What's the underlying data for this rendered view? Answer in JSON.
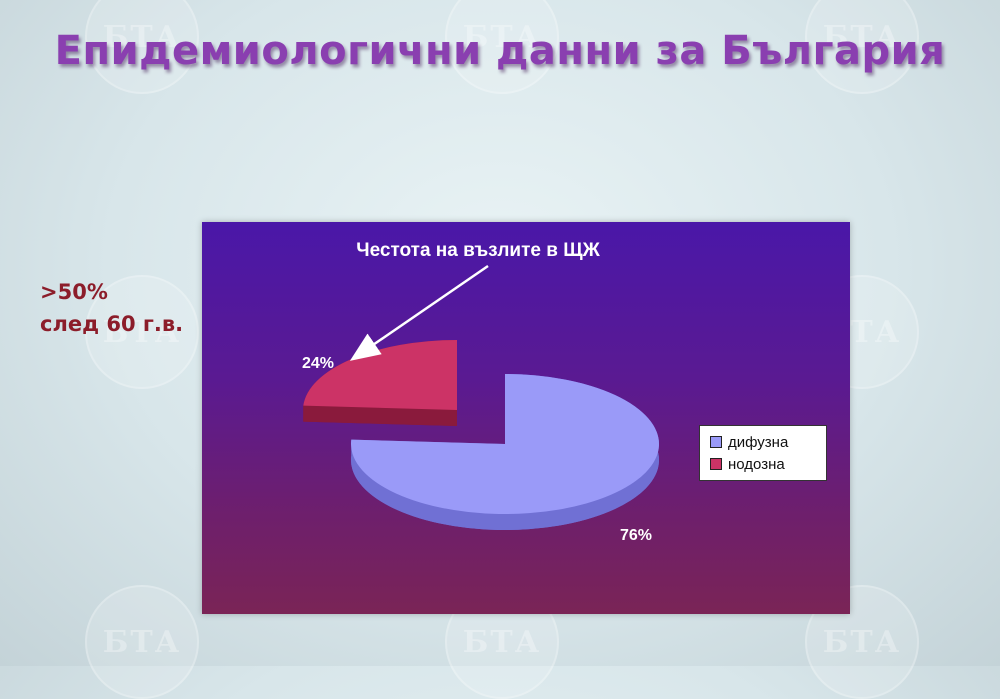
{
  "slide": {
    "title": "Епидемиологични данни за България",
    "side_note": [
      ">50%",
      "след 60 г.в."
    ]
  },
  "colors": {
    "panel_top": "#4a17a8",
    "panel_bottom": "#7a2456",
    "title": "#8a3fb0",
    "side_note": "#8c1d2a"
  },
  "chart_data": {
    "type": "pie",
    "title": "Честота на възлите в ЩЖ",
    "style": "3d-exploded",
    "legend_position": "right",
    "slices": [
      {
        "name": "дифузна",
        "value": 76,
        "label": "76%",
        "color": "#9a9af8",
        "side_color": "#7070d4"
      },
      {
        "name": "нодозна",
        "value": 24,
        "label": "24%",
        "color": "#cc3366",
        "side_color": "#8a1a3c"
      }
    ],
    "annotation": {
      "text": "Честота на възлите в ЩЖ",
      "arrow_to": "нодозна"
    }
  },
  "watermark": {
    "text": "БТА"
  }
}
